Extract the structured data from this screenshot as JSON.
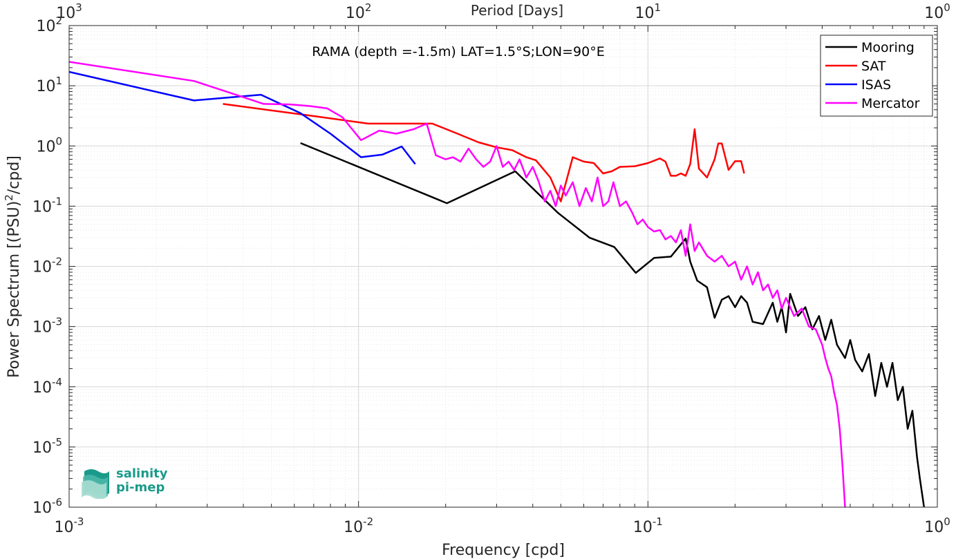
{
  "chart_data": {
    "type": "line",
    "title": "RAMA (depth =-1.5m) LAT=1.5°S;LON=90°E",
    "xlabel": "Frequency [cpd]",
    "ylabel": "Power Spectrum [(PSU)²/cpd]",
    "ylabel_base": "Power Spectrum [(PSU)",
    "ylabel_sup": "2",
    "ylabel_rest": "/cpd]",
    "top_xlabel": "Period [Days]",
    "x_scale": "log",
    "y_scale": "log",
    "xlim": [
      0.001,
      1
    ],
    "ylim": [
      1e-06,
      100
    ],
    "grid": true,
    "legend_position": "top-right",
    "x_tick_labels": [
      {
        "value": 0.001,
        "base": "10",
        "exp": "-3"
      },
      {
        "value": 0.01,
        "base": "10",
        "exp": "-2"
      },
      {
        "value": 0.1,
        "base": "10",
        "exp": "-1"
      },
      {
        "value": 1,
        "base": "10",
        "exp": "0"
      }
    ],
    "top_tick_labels": [
      {
        "value": 0.001,
        "base": "10",
        "exp": "3"
      },
      {
        "value": 0.01,
        "base": "10",
        "exp": "2"
      },
      {
        "value": 0.1,
        "base": "10",
        "exp": "1"
      },
      {
        "value": 1,
        "base": "10",
        "exp": "0"
      }
    ],
    "y_tick_labels": [
      {
        "value": 100,
        "base": "10",
        "exp": "2"
      },
      {
        "value": 10,
        "base": "10",
        "exp": "1"
      },
      {
        "value": 1,
        "base": "10",
        "exp": "0"
      },
      {
        "value": 0.1,
        "base": "10",
        "exp": "-1"
      },
      {
        "value": 0.01,
        "base": "10",
        "exp": "-2"
      },
      {
        "value": 0.001,
        "base": "10",
        "exp": "-3"
      },
      {
        "value": 0.0001,
        "base": "10",
        "exp": "-4"
      },
      {
        "value": 1e-05,
        "base": "10",
        "exp": "-5"
      },
      {
        "value": 1e-06,
        "base": "10",
        "exp": "-6"
      }
    ],
    "series": [
      {
        "name": "Mooring",
        "color": "#000000",
        "x": [
          0.0063,
          0.0202,
          0.0348,
          0.0488,
          0.0628,
          0.0765,
          0.0908,
          0.105,
          0.12,
          0.135,
          0.14,
          0.148,
          0.16,
          0.17,
          0.18,
          0.19,
          0.2,
          0.21,
          0.22,
          0.23,
          0.25,
          0.27,
          0.28,
          0.29,
          0.3,
          0.31,
          0.33,
          0.35,
          0.37,
          0.39,
          0.41,
          0.43,
          0.45,
          0.48,
          0.5,
          0.52,
          0.55,
          0.58,
          0.61,
          0.64,
          0.67,
          0.7,
          0.73,
          0.76,
          0.79,
          0.82,
          0.85,
          0.87,
          0.9,
          0.92
        ],
        "y": [
          1.12,
          0.112,
          0.38,
          0.078,
          0.03,
          0.021,
          0.0078,
          0.0138,
          0.0145,
          0.029,
          0.012,
          0.0058,
          0.0045,
          0.0014,
          0.0028,
          0.0032,
          0.0021,
          0.0032,
          0.0025,
          0.0012,
          0.0011,
          0.0025,
          0.0012,
          0.0021,
          0.0008,
          0.0035,
          0.0015,
          0.0021,
          0.0009,
          0.0015,
          0.0006,
          0.0013,
          0.0005,
          0.0003,
          0.0006,
          0.00028,
          0.00018,
          0.00035,
          7e-05,
          0.00025,
          0.0001,
          0.00025,
          6e-05,
          0.0001,
          2e-05,
          4e-05,
          7e-06,
          3e-06,
          1e-06,
          8e-07
        ]
      },
      {
        "name": "SAT",
        "color": "#ff0000",
        "x": [
          0.0034,
          0.0068,
          0.0108,
          0.0148,
          0.018,
          0.022,
          0.026,
          0.03,
          0.034,
          0.038,
          0.041,
          0.046,
          0.05,
          0.055,
          0.06,
          0.065,
          0.07,
          0.075,
          0.08,
          0.09,
          0.1,
          0.11,
          0.115,
          0.12,
          0.125,
          0.13,
          0.135,
          0.14,
          0.145,
          0.15,
          0.16,
          0.17,
          0.175,
          0.18,
          0.19,
          0.2,
          0.21,
          0.215
        ],
        "y": [
          5.0,
          3.2,
          2.35,
          2.35,
          2.35,
          1.6,
          1.15,
          0.95,
          0.85,
          0.65,
          0.58,
          0.3,
          0.12,
          0.65,
          0.55,
          0.52,
          0.35,
          0.38,
          0.45,
          0.46,
          0.52,
          0.62,
          0.55,
          0.32,
          0.32,
          0.35,
          0.32,
          0.5,
          1.9,
          0.42,
          0.3,
          0.6,
          1.1,
          1.1,
          0.4,
          0.56,
          0.56,
          0.35
        ]
      },
      {
        "name": "ISAS",
        "color": "#0000ff",
        "x": [
          0.001,
          0.0027,
          0.0046,
          0.0063,
          0.008,
          0.0102,
          0.0121,
          0.0141,
          0.0157
        ],
        "y": [
          17,
          5.7,
          7.1,
          3.5,
          1.6,
          0.65,
          0.72,
          0.98,
          0.5
        ]
      },
      {
        "name": "Mercator",
        "color": "#ff00ff",
        "x": [
          0.001,
          0.0027,
          0.0038,
          0.0047,
          0.0058,
          0.0068,
          0.0078,
          0.0088,
          0.0102,
          0.0118,
          0.0135,
          0.0155,
          0.0172,
          0.0185,
          0.02,
          0.0212,
          0.0225,
          0.024,
          0.0255,
          0.027,
          0.0285,
          0.03,
          0.0315,
          0.033,
          0.0345,
          0.036,
          0.038,
          0.04,
          0.042,
          0.044,
          0.046,
          0.048,
          0.05,
          0.052,
          0.055,
          0.058,
          0.061,
          0.064,
          0.067,
          0.07,
          0.073,
          0.076,
          0.08,
          0.084,
          0.088,
          0.092,
          0.096,
          0.1,
          0.105,
          0.11,
          0.115,
          0.12,
          0.125,
          0.13,
          0.135,
          0.14,
          0.145,
          0.15,
          0.16,
          0.17,
          0.18,
          0.19,
          0.2,
          0.21,
          0.22,
          0.23,
          0.24,
          0.25,
          0.26,
          0.27,
          0.28,
          0.29,
          0.3,
          0.32,
          0.34,
          0.36,
          0.38,
          0.4,
          0.41,
          0.42,
          0.43,
          0.44,
          0.45,
          0.46,
          0.47,
          0.48
        ],
        "y": [
          25,
          12,
          7.0,
          5.0,
          4.9,
          4.6,
          4.2,
          3.0,
          1.25,
          1.8,
          1.6,
          1.9,
          2.35,
          0.7,
          0.6,
          0.65,
          0.55,
          0.9,
          0.6,
          0.45,
          0.55,
          1.0,
          0.45,
          0.55,
          0.4,
          0.6,
          0.3,
          0.45,
          0.25,
          0.12,
          0.18,
          0.1,
          0.22,
          0.15,
          0.25,
          0.1,
          0.2,
          0.12,
          0.3,
          0.1,
          0.12,
          0.25,
          0.1,
          0.12,
          0.08,
          0.05,
          0.06,
          0.045,
          0.038,
          0.04,
          0.028,
          0.032,
          0.025,
          0.04,
          0.015,
          0.05,
          0.018,
          0.025,
          0.015,
          0.012,
          0.015,
          0.01,
          0.012,
          0.006,
          0.01,
          0.005,
          0.008,
          0.004,
          0.005,
          0.003,
          0.004,
          0.002,
          0.003,
          0.0015,
          0.002,
          0.001,
          0.0009,
          0.0005,
          0.0003,
          0.0002,
          0.00015,
          8e-05,
          5e-05,
          2e-05,
          5e-06,
          1e-06
        ]
      }
    ]
  },
  "logo": {
    "line1": "salinity",
    "line2": "pi-mep"
  }
}
